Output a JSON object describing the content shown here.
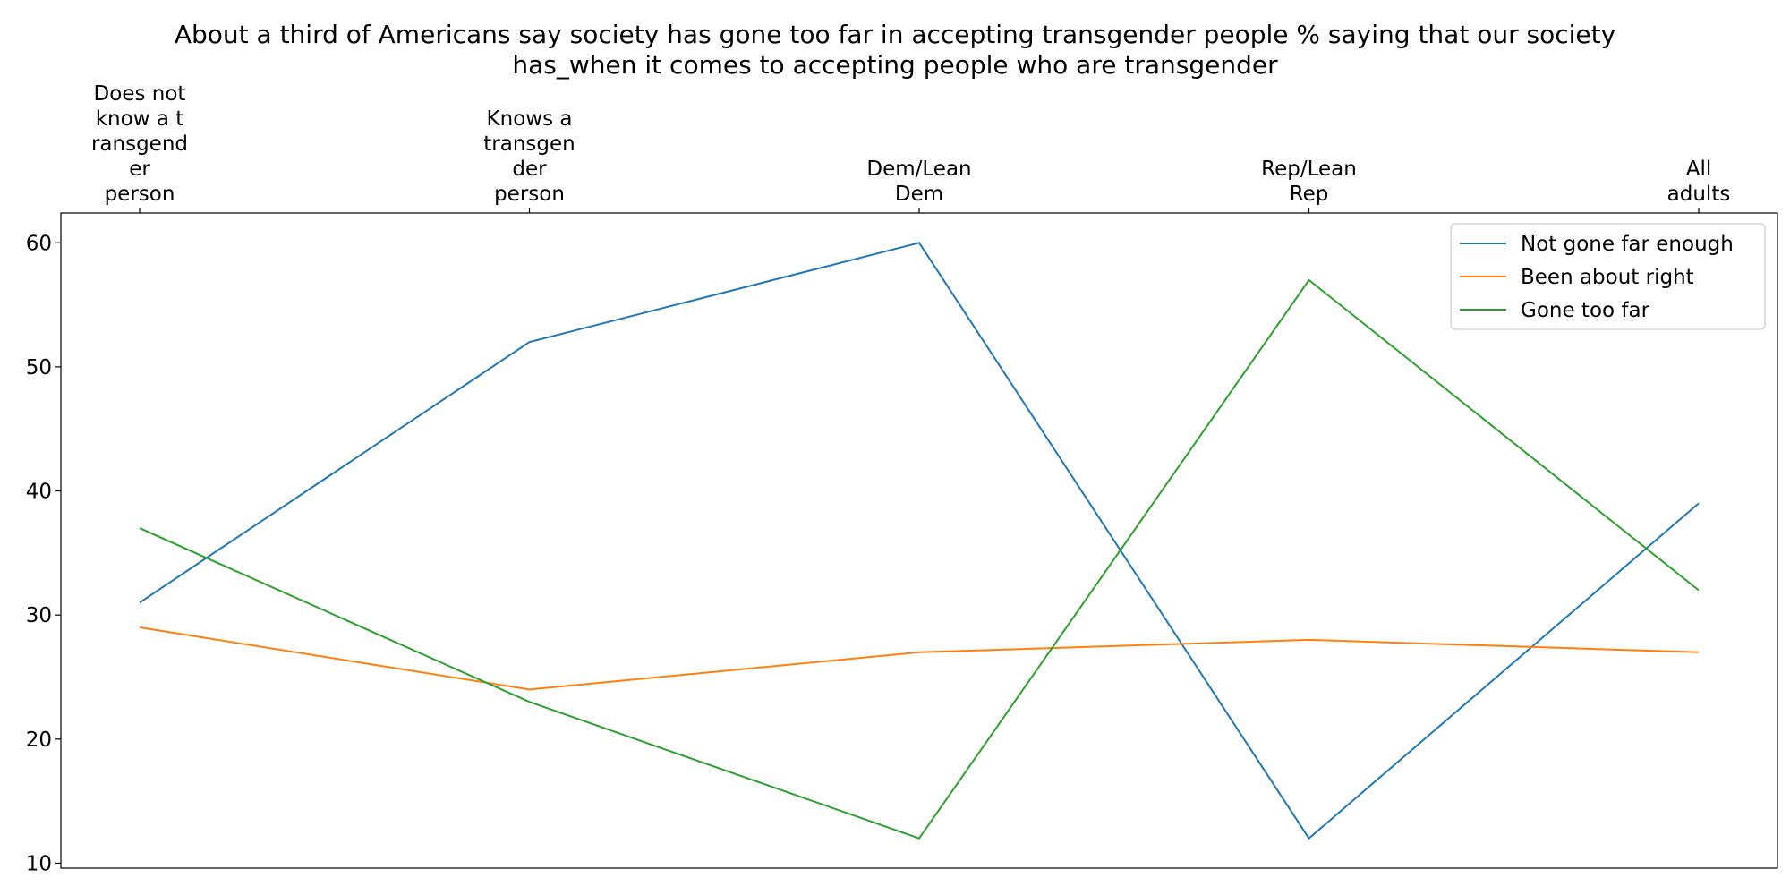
{
  "chart_data": {
    "type": "line",
    "title": "About a third of Americans say society has gone too far in accepting transgender people % saying that our society has_when it comes to accepting people who are transgender",
    "title_lines": [
      "About a third of Americans say society has gone too far in accepting transgender people % saying that our society",
      "has_when it comes to accepting people who are transgender"
    ],
    "xlabel": "",
    "ylabel": "",
    "x_axis_position": "top",
    "categories": [
      "Does not know a transgender person",
      "Knows a transgender person",
      "Dem/Lean Dem",
      "Rep/Lean Rep",
      "All adults"
    ],
    "category_tick_lines": [
      [
        "Does not",
        "know a t",
        "ransgend",
        "er",
        "person"
      ],
      [
        "Knows a",
        "transgen",
        "der",
        "person"
      ],
      [
        "Dem/Lean",
        "Dem"
      ],
      [
        "Rep/Lean",
        "Rep"
      ],
      [
        "All",
        "adults"
      ]
    ],
    "ylim": [
      9.6,
      62.4
    ],
    "yticks": [
      10,
      20,
      30,
      40,
      50,
      60
    ],
    "grid": false,
    "legend_position": "top-right",
    "series": [
      {
        "name": "Not gone far enough",
        "color": "#1f77b4",
        "values": [
          31,
          52,
          60,
          12,
          39
        ]
      },
      {
        "name": "Been about right",
        "color": "#ff7f0e",
        "values": [
          29,
          24,
          27,
          28,
          27
        ]
      },
      {
        "name": "Gone too far",
        "color": "#2ca02c",
        "values": [
          37,
          23,
          12,
          57,
          32
        ]
      }
    ]
  }
}
